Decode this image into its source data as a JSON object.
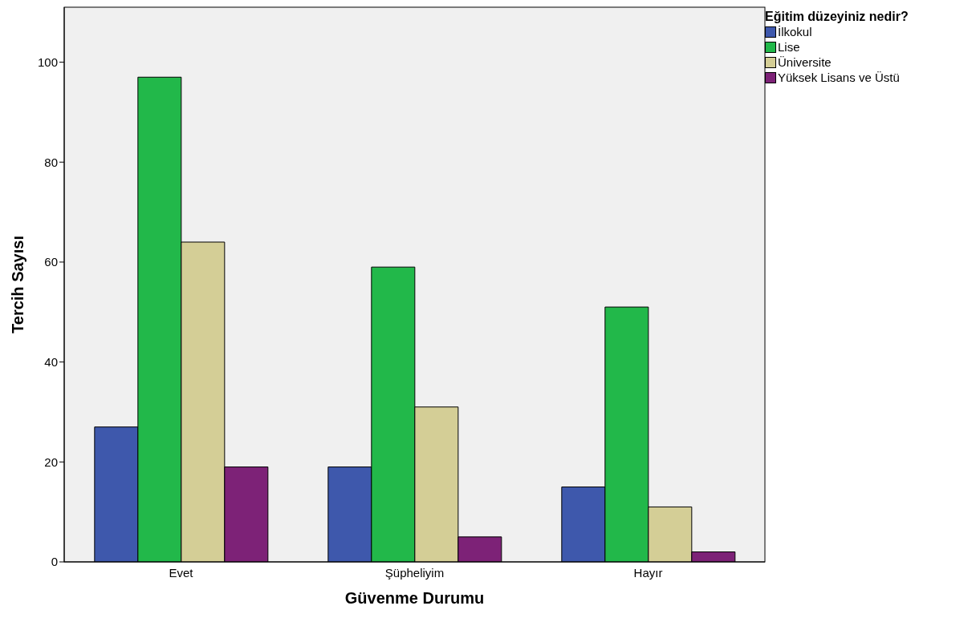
{
  "chart_data": {
    "type": "bar",
    "xlabel": "Güvenme Durumu",
    "ylabel": "Tercih Sayısı",
    "legend_title": "Eğitim düzeyiniz nedir?",
    "categories": [
      "Evet",
      "Şüpheliyim",
      "Hayır"
    ],
    "series": [
      {
        "name": "İlkokul",
        "color": "#3e58ac",
        "values": [
          27,
          19,
          15
        ]
      },
      {
        "name": "Lise",
        "color": "#22b84a",
        "values": [
          97,
          59,
          51
        ]
      },
      {
        "name": "Üniversite",
        "color": "#d4ce96",
        "values": [
          64,
          31,
          11
        ]
      },
      {
        "name": "Yüksek Lisans ve Üstü",
        "color": "#7d2277",
        "values": [
          19,
          5,
          2
        ]
      }
    ],
    "ylim": [
      0,
      111
    ],
    "yticks": [
      0,
      20,
      40,
      60,
      80,
      100
    ],
    "grid": false,
    "legend": "top right"
  }
}
